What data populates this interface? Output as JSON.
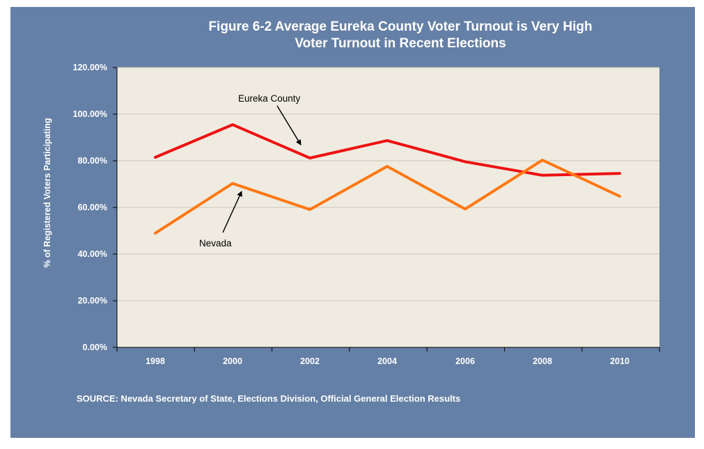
{
  "chart_data": {
    "type": "line",
    "title": "Figure 6-2 Average Eureka County Voter Turnout is Very High",
    "subtitle": "Voter Turnout in Recent Elections",
    "ylabel": "% of Registered Voters Participating",
    "xlabel": "",
    "x": [
      "1998",
      "2000",
      "2002",
      "2004",
      "2006",
      "2008",
      "2010"
    ],
    "ylim": [
      0,
      120
    ],
    "yticks": [
      0,
      20,
      40,
      60,
      80,
      100,
      120
    ],
    "ytick_labels": [
      "0.00%",
      "20.00%",
      "40.00%",
      "60.00%",
      "80.00%",
      "100.00%",
      "120.00%"
    ],
    "grid": true,
    "series": [
      {
        "name": "Eureka County",
        "color": "#ee1111",
        "values": [
          81.5,
          95.5,
          81.2,
          88.7,
          79.6,
          73.8,
          74.6
        ]
      },
      {
        "name": "Nevada",
        "color": "#ff7711",
        "values": [
          49.0,
          70.3,
          59.1,
          77.6,
          59.3,
          80.3,
          64.8
        ]
      }
    ],
    "annotations": [
      {
        "text": "Eureka County",
        "series": 0
      },
      {
        "text": "Nevada",
        "series": 1
      }
    ],
    "source": "SOURCE: Nevada Secretary of State, Elections Division, Official General Election Results"
  },
  "colors": {
    "panel": "#6580a6",
    "plot_area": "#efebe0",
    "gridline": "#c9c5bb"
  }
}
